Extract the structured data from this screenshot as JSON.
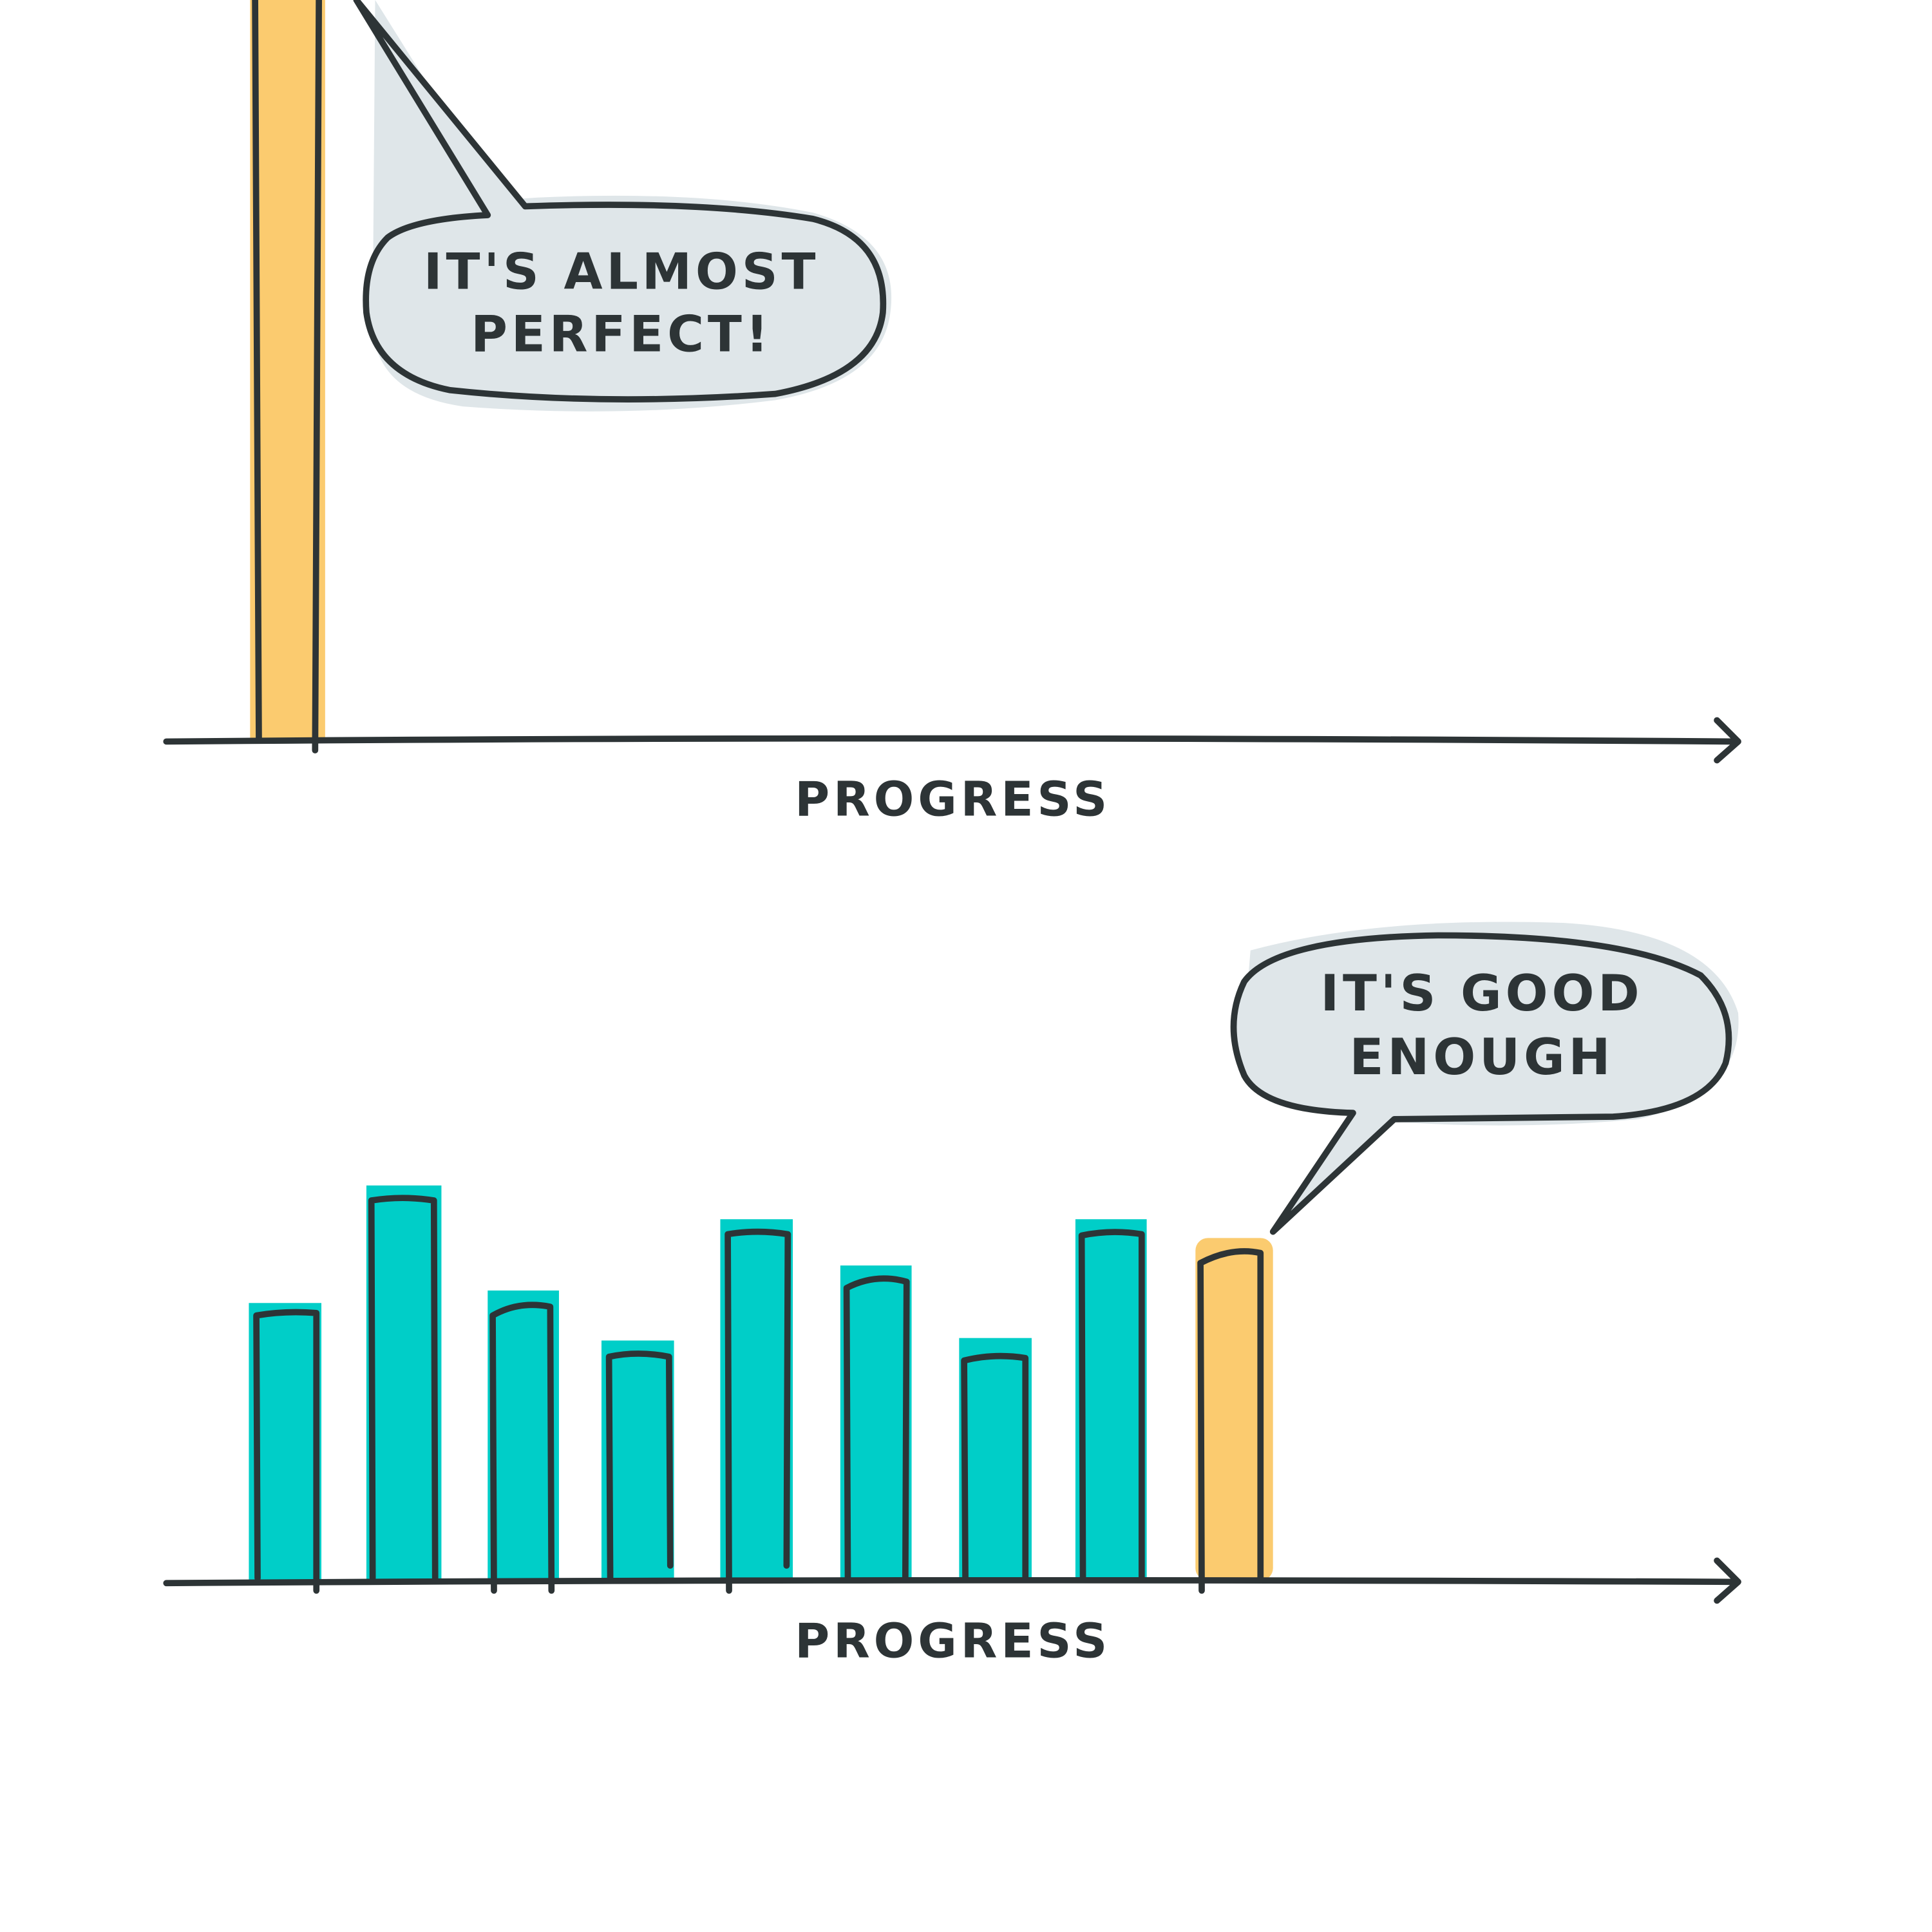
{
  "panels": [
    {
      "callout": [
        "IT'S ALMOST",
        "PERFECT!"
      ],
      "axis_label": "PROGRESS"
    },
    {
      "callout": [
        "IT'S GOOD",
        "ENOUGH"
      ],
      "axis_label": "PROGRESS"
    }
  ]
}
